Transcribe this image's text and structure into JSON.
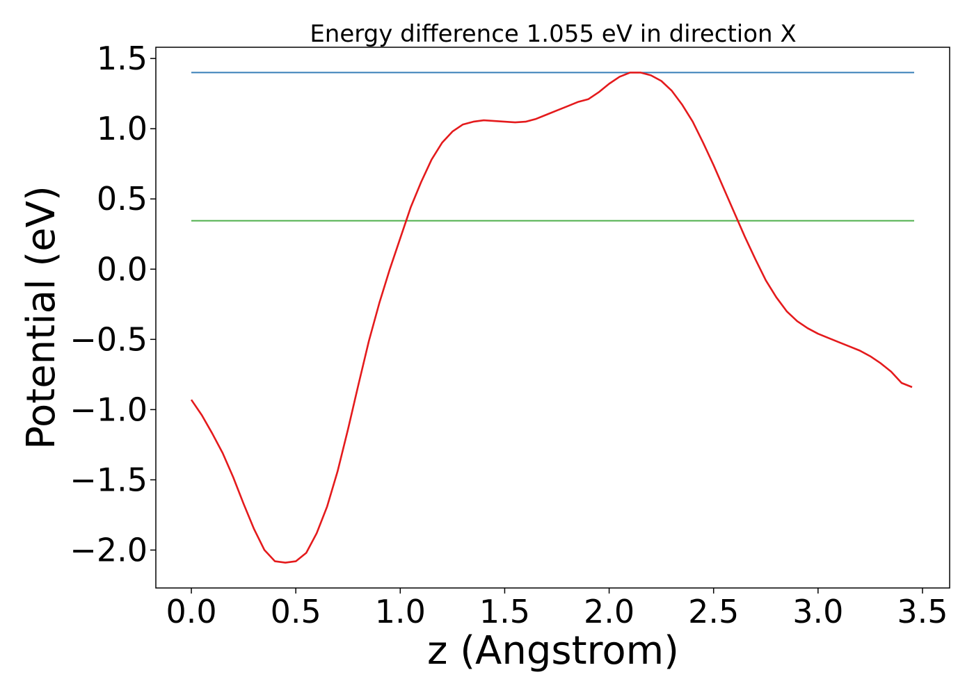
{
  "chart_data": {
    "type": "line",
    "title": "Energy difference 1.055 eV in direction X",
    "xlabel": "z (Angstrom)",
    "ylabel": "Potential (eV)",
    "xlim": [
      -0.17,
      3.63
    ],
    "ylim": [
      -2.27,
      1.58
    ],
    "xticks": [
      0.0,
      0.5,
      1.0,
      1.5,
      2.0,
      2.5,
      3.0,
      3.5
    ],
    "xtick_labels": [
      "0.0",
      "0.5",
      "1.0",
      "1.5",
      "2.0",
      "2.5",
      "3.0",
      "3.5"
    ],
    "yticks": [
      1.5,
      1.0,
      0.5,
      0.0,
      -0.5,
      -1.0,
      -1.5,
      -2.0
    ],
    "ytick_labels": [
      "1.5",
      "1.0",
      "0.5",
      "0.0",
      "−0.5",
      "−1.0",
      "−1.5",
      "−2.0"
    ],
    "grid": false,
    "series": [
      {
        "color": "#e41a1c",
        "x": [
          0.0,
          0.05,
          0.1,
          0.15,
          0.2,
          0.25,
          0.3,
          0.35,
          0.4,
          0.45,
          0.5,
          0.55,
          0.6,
          0.65,
          0.7,
          0.75,
          0.8,
          0.85,
          0.9,
          0.95,
          1.0,
          1.05,
          1.1,
          1.15,
          1.2,
          1.25,
          1.3,
          1.35,
          1.4,
          1.45,
          1.5,
          1.55,
          1.6,
          1.65,
          1.7,
          1.75,
          1.8,
          1.85,
          1.9,
          1.95,
          2.0,
          2.05,
          2.1,
          2.15,
          2.2,
          2.25,
          2.3,
          2.35,
          2.4,
          2.45,
          2.5,
          2.55,
          2.6,
          2.65,
          2.7,
          2.75,
          2.8,
          2.85,
          2.9,
          2.95,
          3.0,
          3.05,
          3.1,
          3.15,
          3.2,
          3.25,
          3.3,
          3.35,
          3.4,
          3.45
        ],
        "y": [
          -0.93,
          -1.04,
          -1.17,
          -1.31,
          -1.48,
          -1.67,
          -1.85,
          -2.0,
          -2.08,
          -2.09,
          -2.08,
          -2.02,
          -1.88,
          -1.69,
          -1.44,
          -1.14,
          -0.82,
          -0.51,
          -0.24,
          0.0,
          0.22,
          0.44,
          0.62,
          0.78,
          0.9,
          0.98,
          1.03,
          1.05,
          1.06,
          1.055,
          1.05,
          1.045,
          1.05,
          1.07,
          1.1,
          1.13,
          1.16,
          1.19,
          1.21,
          1.26,
          1.32,
          1.37,
          1.4,
          1.4,
          1.38,
          1.34,
          1.27,
          1.17,
          1.05,
          0.9,
          0.74,
          0.57,
          0.4,
          0.23,
          0.07,
          -0.08,
          -0.2,
          -0.3,
          -0.37,
          -0.42,
          -0.46,
          -0.49,
          -0.52,
          -0.55,
          -0.58,
          -0.62,
          -0.67,
          -0.73,
          -0.81,
          -0.84
        ]
      },
      {
        "color": "#377eb8",
        "x": [
          0.0,
          3.46
        ],
        "y": [
          1.4,
          1.4
        ]
      },
      {
        "color": "#4daf4a",
        "x": [
          0.0,
          3.46
        ],
        "y": [
          0.345,
          0.345
        ]
      }
    ]
  }
}
